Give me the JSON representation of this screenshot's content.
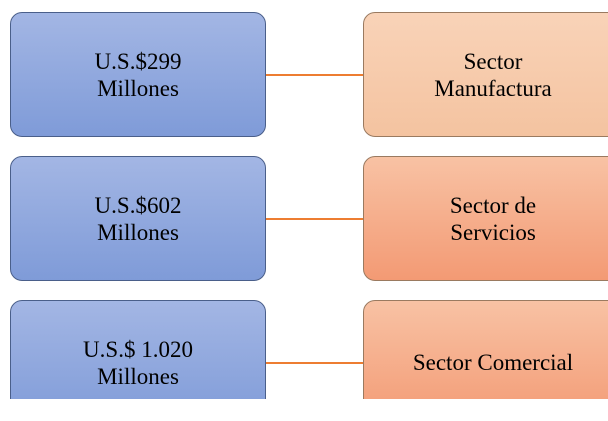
{
  "rows": [
    {
      "amount": [
        "U.S.$299",
        "Millones"
      ],
      "sector": [
        "Sector",
        "Manufactura"
      ]
    },
    {
      "amount": [
        "U.S.$602",
        "Millones"
      ],
      "sector": [
        "Sector de",
        "Servicios"
      ]
    },
    {
      "amount": [
        "U.S.$ 1.020",
        "Millones"
      ],
      "sector": [
        "Sector Comercial"
      ]
    }
  ]
}
